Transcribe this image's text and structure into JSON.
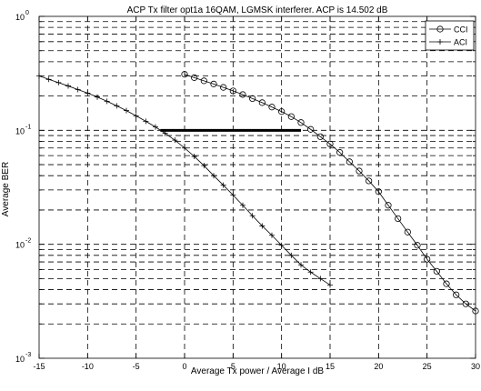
{
  "chart_data": {
    "type": "line",
    "title": "ACP Tx filter opt1a 16QAM, LGMSK interferer. ACP is 14.502 dB",
    "xlabel": "Average Tx power / Average I  dB",
    "ylabel": "Average BER",
    "xlim": [
      -15,
      30
    ],
    "ylim": [
      0.001,
      1
    ],
    "yscale": "log",
    "grid": true,
    "legend_position": "top-right",
    "x_ticks": [
      -15,
      -10,
      -5,
      0,
      5,
      10,
      15,
      20,
      25,
      30
    ],
    "x_tick_labels": [
      "-15",
      "-10",
      "-5",
      "0",
      "5",
      "10",
      "15",
      "20",
      "25",
      "30"
    ],
    "y_ticks": [
      {
        "value": 1,
        "base": "10",
        "exp": "0"
      },
      {
        "value": 0.1,
        "base": "10",
        "exp": "-1"
      },
      {
        "value": 0.01,
        "base": "10",
        "exp": "-2"
      },
      {
        "value": 0.001,
        "base": "10",
        "exp": "-3"
      }
    ],
    "series": [
      {
        "name": "CCI",
        "marker": "circle",
        "x": [
          0,
          1,
          2,
          3,
          4,
          5,
          6,
          7,
          8,
          9,
          10,
          11,
          12,
          13,
          14,
          15,
          16,
          17,
          18,
          19,
          20,
          21,
          22,
          23,
          24,
          25,
          26,
          27,
          28,
          29,
          30
        ],
        "y": [
          0.31,
          0.29,
          0.272,
          0.255,
          0.238,
          0.222,
          0.206,
          0.19,
          0.175,
          0.16,
          0.146,
          0.132,
          0.117,
          0.102,
          0.088,
          0.076,
          0.064,
          0.053,
          0.044,
          0.036,
          0.029,
          0.022,
          0.0168,
          0.0128,
          0.0098,
          0.0074,
          0.0058,
          0.0045,
          0.0036,
          0.003,
          0.0026
        ]
      },
      {
        "name": "ACI",
        "marker": "plus",
        "x": [
          -15,
          -14,
          -13,
          -12,
          -11,
          -10,
          -9,
          -8,
          -7,
          -6,
          -5,
          -4,
          -3,
          -2,
          -1,
          0,
          1,
          2,
          3,
          4,
          5,
          6,
          7,
          8,
          9,
          10,
          11,
          12,
          13,
          14,
          15
        ],
        "y": [
          0.3,
          0.28,
          0.262,
          0.245,
          0.228,
          0.212,
          0.196,
          0.18,
          0.164,
          0.149,
          0.134,
          0.12,
          0.107,
          0.094,
          0.082,
          0.07,
          0.059,
          0.049,
          0.04,
          0.033,
          0.027,
          0.022,
          0.0178,
          0.0145,
          0.012,
          0.0098,
          0.008,
          0.0066,
          0.0057,
          0.005,
          0.0044
        ]
      }
    ],
    "annotations": [
      {
        "type": "hline",
        "y": 0.1,
        "x_start": -2.5,
        "x_end": 12
      }
    ]
  }
}
